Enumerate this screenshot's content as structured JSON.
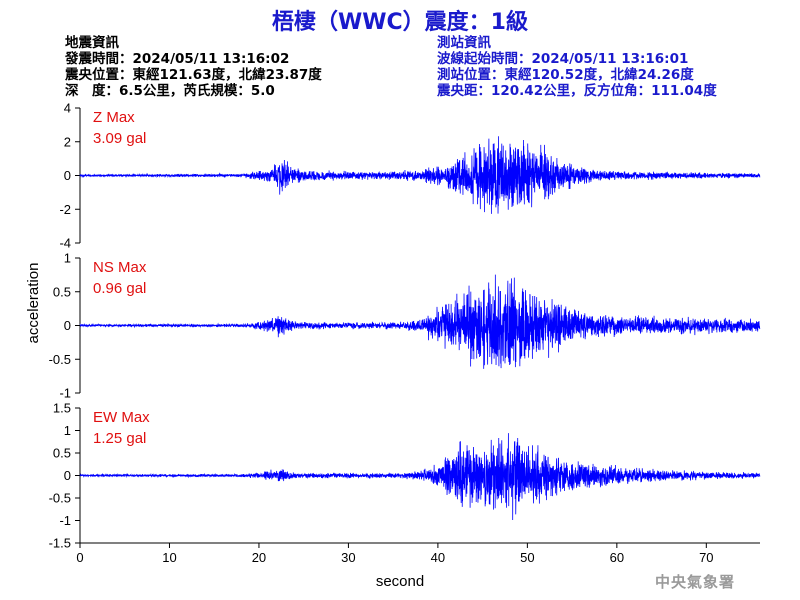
{
  "title": "梧棲（WWC）震度：1級",
  "quake_info": {
    "heading": "地震資訊",
    "origin_time": "發震時間：2024/05/11 13:16:02",
    "epicenter": "震央位置：東經121.63度，北緯23.87度",
    "depth_magnitude": "深　度：6.5公里，芮氏規模：5.0"
  },
  "station_info": {
    "heading": "測站資訊",
    "wave_start": "波線起始時間：2024/05/11 13:16:01",
    "location": "測站位置：東經120.52度，北緯24.26度",
    "distance": "震央距：120.42公里，反方位角：111.04度"
  },
  "agency": "中央氣象署",
  "colors": {
    "trace": "#0000ff",
    "max_label": "#e01010",
    "title": "#1a1acc"
  },
  "chart_data": {
    "type": "line",
    "xlabel": "second",
    "ylabel": "acceleration",
    "xlim": [
      0,
      76
    ],
    "xticks": [
      "0",
      "10",
      "20",
      "30",
      "40",
      "50",
      "60",
      "70"
    ],
    "panels": [
      {
        "name": "Z",
        "max_title": "Z Max",
        "max_value": "3.09 gal",
        "ylim": [
          -4,
          4
        ],
        "yticks": [
          "4",
          "2",
          "0",
          "-2",
          "-4"
        ],
        "envelope": [
          [
            0,
            0.08
          ],
          [
            18,
            0.12
          ],
          [
            20,
            0.35
          ],
          [
            21.5,
            0.6
          ],
          [
            22.5,
            1.6
          ],
          [
            23.5,
            0.6
          ],
          [
            26,
            0.4
          ],
          [
            30,
            0.3
          ],
          [
            35,
            0.3
          ],
          [
            38,
            0.45
          ],
          [
            41,
            0.9
          ],
          [
            43,
            1.8
          ],
          [
            45,
            2.5
          ],
          [
            46.5,
            3.09
          ],
          [
            48,
            2.9
          ],
          [
            50,
            2.3
          ],
          [
            52,
            2.0
          ],
          [
            53,
            1.5
          ],
          [
            55,
            0.8
          ],
          [
            58,
            0.4
          ],
          [
            62,
            0.3
          ],
          [
            70,
            0.2
          ],
          [
            76,
            0.15
          ]
        ]
      },
      {
        "name": "NS",
        "max_title": "NS Max",
        "max_value": "0.96 gal",
        "ylim": [
          -1,
          1
        ],
        "yticks": [
          "1",
          "0.5",
          "0",
          "-0.5",
          "-1"
        ],
        "envelope": [
          [
            0,
            0.02
          ],
          [
            18,
            0.03
          ],
          [
            20,
            0.07
          ],
          [
            22.5,
            0.22
          ],
          [
            24,
            0.08
          ],
          [
            28,
            0.06
          ],
          [
            35,
            0.06
          ],
          [
            38,
            0.12
          ],
          [
            40,
            0.35
          ],
          [
            42,
            0.55
          ],
          [
            44,
            0.7
          ],
          [
            46,
            0.8
          ],
          [
            48,
            0.96
          ],
          [
            50,
            0.7
          ],
          [
            52,
            0.55
          ],
          [
            55,
            0.35
          ],
          [
            58,
            0.22
          ],
          [
            62,
            0.17
          ],
          [
            70,
            0.15
          ],
          [
            76,
            0.12
          ]
        ]
      },
      {
        "name": "EW",
        "max_title": "EW Max",
        "max_value": "1.25 gal",
        "ylim": [
          -1.5,
          1.5
        ],
        "yticks": [
          "1.5",
          "1",
          "0.5",
          "0",
          "-0.5",
          "-1",
          "-1.5"
        ],
        "envelope": [
          [
            0,
            0.03
          ],
          [
            18,
            0.04
          ],
          [
            20,
            0.08
          ],
          [
            22.5,
            0.2
          ],
          [
            24,
            0.07
          ],
          [
            30,
            0.07
          ],
          [
            36,
            0.07
          ],
          [
            39,
            0.18
          ],
          [
            42,
            0.7
          ],
          [
            43,
            1.0
          ],
          [
            45,
            0.8
          ],
          [
            48,
            1.25
          ],
          [
            50,
            0.8
          ],
          [
            53,
            0.65
          ],
          [
            55,
            0.45
          ],
          [
            58,
            0.3
          ],
          [
            62,
            0.2
          ],
          [
            70,
            0.1
          ],
          [
            76,
            0.08
          ]
        ]
      }
    ]
  }
}
